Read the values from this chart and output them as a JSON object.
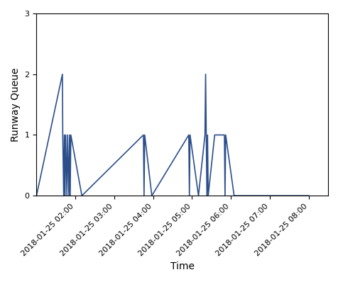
{
  "title": "",
  "xlabel": "Time",
  "ylabel": "Runway Queue",
  "ylim": [
    0,
    3
  ],
  "yticks": [
    0,
    1,
    2,
    3
  ],
  "line_color": "#2c4f8c",
  "line_width": 1.2,
  "background_color": "#ffffff",
  "timestamps": [
    "2018-01-25 01:00:00",
    "2018-01-25 01:40:00",
    "2018-01-25 01:40:30",
    "2018-01-25 01:42:00",
    "2018-01-25 01:43:00",
    "2018-01-25 01:44:00",
    "2018-01-25 01:45:00",
    "2018-01-25 01:47:00",
    "2018-01-25 01:48:00",
    "2018-01-25 01:50:00",
    "2018-01-25 01:51:00",
    "2018-01-25 01:52:00",
    "2018-01-25 01:53:00",
    "2018-01-25 02:10:00",
    "2018-01-25 03:45:00",
    "2018-01-25 03:46:00",
    "2018-01-25 03:47:00",
    "2018-01-25 03:58:00",
    "2018-01-25 04:55:00",
    "2018-01-25 04:56:00",
    "2018-01-25 04:57:00",
    "2018-01-25 05:10:00",
    "2018-01-25 05:20:00",
    "2018-01-25 05:21:00",
    "2018-01-25 05:22:00",
    "2018-01-25 05:23:00",
    "2018-01-25 05:24:00",
    "2018-01-25 05:25:00",
    "2018-01-25 05:35:00",
    "2018-01-25 05:50:00",
    "2018-01-25 05:51:00",
    "2018-01-25 05:52:00",
    "2018-01-25 06:05:00",
    "2018-01-25 08:00:00"
  ],
  "values": [
    0,
    2,
    1,
    0,
    1,
    0,
    1,
    0,
    1,
    0,
    1,
    0,
    1,
    0,
    1,
    0,
    1,
    0,
    1,
    0,
    1,
    0,
    1,
    2,
    1,
    0,
    1,
    0,
    1,
    1,
    0,
    1,
    0,
    0
  ],
  "xlim_start": "2018-01-25 01:00:00",
  "xlim_end": "2018-01-25 08:30:00",
  "xtick_times": [
    "2018-01-25 02:00:00",
    "2018-01-25 03:00:00",
    "2018-01-25 04:00:00",
    "2018-01-25 05:00:00",
    "2018-01-25 06:00:00",
    "2018-01-25 07:00:00",
    "2018-01-25 08:00:00"
  ],
  "tick_fontsize": 8,
  "label_fontsize": 10
}
